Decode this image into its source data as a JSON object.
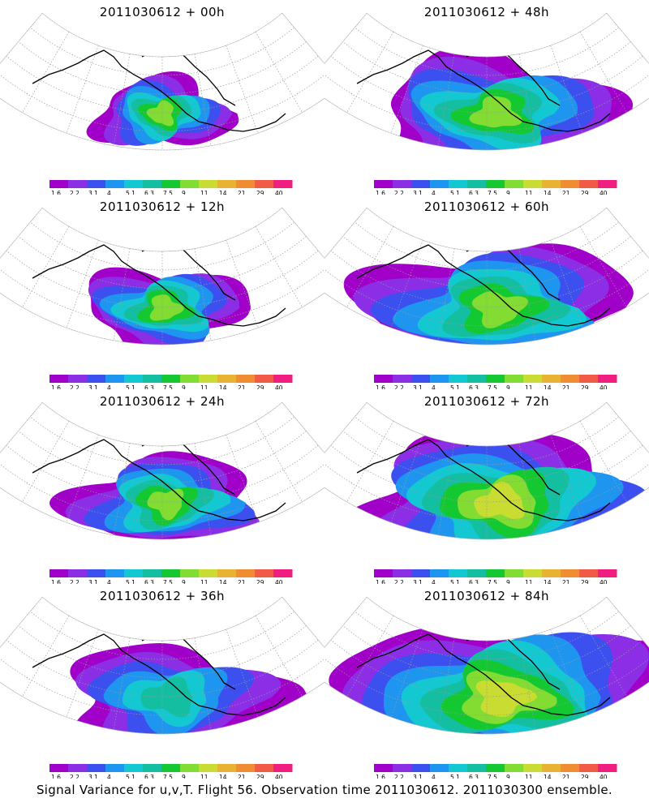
{
  "caption": "Signal Variance for u,v,T. Flight 56. Observation time 2011030612. 2011030300 ensemble.",
  "colorbar": {
    "levels": [
      "1.6",
      "2.2",
      "3.1",
      "4",
      "5.1",
      "6.3",
      "7.5",
      "9",
      "11",
      "14",
      "21",
      "29",
      "40"
    ],
    "colors": [
      "#a000c8",
      "#8c2ee6",
      "#3c50f0",
      "#1e96f0",
      "#14c8d2",
      "#14bea0",
      "#14c832",
      "#82dc32",
      "#c8dc32",
      "#e6b432",
      "#f08c32",
      "#f05a46",
      "#f01e82"
    ]
  },
  "panels": [
    {
      "title": "2011030612 + 00h",
      "lead_hours": 0
    },
    {
      "title": "2011030612 + 48h",
      "lead_hours": 48
    },
    {
      "title": "2011030612 + 12h",
      "lead_hours": 12
    },
    {
      "title": "2011030612 + 60h",
      "lead_hours": 60
    },
    {
      "title": "2011030612 + 24h",
      "lead_hours": 24
    },
    {
      "title": "2011030612 + 72h",
      "lead_hours": 72
    },
    {
      "title": "2011030612 + 36h",
      "lead_hours": 36
    },
    {
      "title": "2011030612 + 84h",
      "lead_hours": 84
    }
  ],
  "chart_data": {
    "type": "heatmap",
    "title": "Signal Variance for u,v,T. Flight 56. Observation time 2011030612. 2011030300 ensemble.",
    "contour_levels": [
      1.6,
      2.2,
      3.1,
      4,
      5.1,
      6.3,
      7.5,
      9,
      11,
      14,
      21,
      29,
      40
    ],
    "fields": [
      {
        "lead_hours": 0,
        "peak_level": 9
      },
      {
        "lead_hours": 12,
        "peak_level": 9
      },
      {
        "lead_hours": 24,
        "peak_level": 9
      },
      {
        "lead_hours": 36,
        "peak_level": 6.3
      },
      {
        "lead_hours": 48,
        "peak_level": 9
      },
      {
        "lead_hours": 60,
        "peak_level": 9
      },
      {
        "lead_hours": 72,
        "peak_level": 11
      },
      {
        "lead_hours": 84,
        "peak_level": 11
      }
    ],
    "projection": "polar stereographic sector, North Pacific / North America",
    "grid": true,
    "legend": "horizontal colorbar below each panel"
  }
}
